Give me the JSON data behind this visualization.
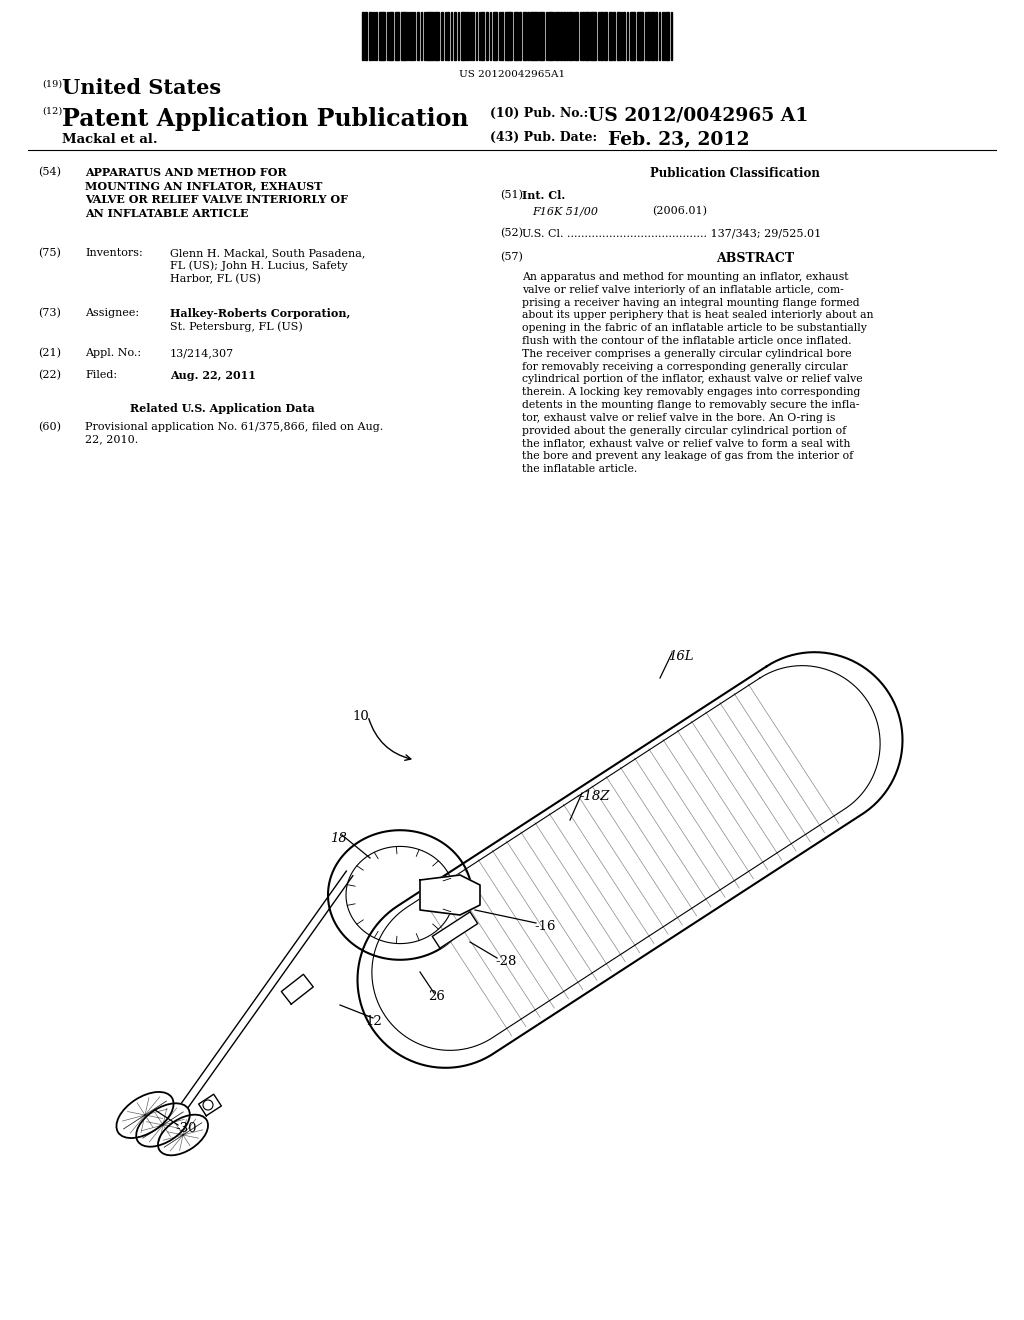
{
  "bg_color": "#ffffff",
  "barcode_text": "US 20120042965A1",
  "header_19": "(19)",
  "header_country": "United States",
  "header_12": "(12)",
  "header_type": "Patent Application Publication",
  "header_10": "(10) Pub. No.:",
  "header_pub_no": "US 2012/0042965 A1",
  "header_43": "(43) Pub. Date:",
  "header_date": "Feb. 23, 2012",
  "header_name": "Mackal et al.",
  "field_54_label": "(54)",
  "field_54_title": "APPARATUS AND METHOD FOR\nMOUNTING AN INFLATOR, EXHAUST\nVALVE OR RELIEF VALVE INTERIORLY OF\nAN INFLATABLE ARTICLE",
  "pub_class_title": "Publication Classification",
  "field_51_label": "(51)",
  "field_51_text": "Int. Cl.",
  "field_51_class": "F16K 51/00",
  "field_51_year": "(2006.01)",
  "field_52_label": "(52)",
  "field_52_text": "U.S. Cl. ........................................ 137/343; 29/525.01",
  "field_57_label": "(57)",
  "field_57_title": "ABSTRACT",
  "abstract_text": "An apparatus and method for mounting an inflator, exhaust\nvalve or relief valve interiorly of an inflatable article, com-\nprising a receiver having an integral mounting flange formed\nabout its upper periphery that is heat sealed interiorly about an\nopening in the fabric of an inflatable article to be substantially\nflush with the contour of the inflatable article once inflated.\nThe receiver comprises a generally circular cylindrical bore\nfor removably receiving a corresponding generally circular\ncylindrical portion of the inflator, exhaust valve or relief valve\ntherein. A locking key removably engages into corresponding\ndetents in the mounting flange to removably secure the infla-\ntor, exhaust valve or relief valve in the bore. An O-ring is\nprovided about the generally circular cylindrical portion of\nthe inflator, exhaust valve or relief valve to form a seal with\nthe bore and prevent any leakage of gas from the interior of\nthe inflatable article.",
  "field_75_label": "(75)",
  "field_75_key": "Inventors:",
  "field_75_value": "Glenn H. Mackal, South Pasadena,\nFL (US); John H. Lucius, Safety\nHarbor, FL (US)",
  "field_73_label": "(73)",
  "field_73_key": "Assignee:",
  "field_73_value": "Halkey-Roberts Corporation, St.\nPetersburg, FL (US)",
  "field_21_label": "(21)",
  "field_21_key": "Appl. No.:",
  "field_21_value": "13/214,307",
  "field_22_label": "(22)",
  "field_22_key": "Filed:",
  "field_22_value": "Aug. 22, 2011",
  "related_title": "Related U.S. Application Data",
  "field_60_label": "(60)",
  "field_60_value": "Provisional application No. 61/375,866, filed on Aug.\n22, 2010."
}
